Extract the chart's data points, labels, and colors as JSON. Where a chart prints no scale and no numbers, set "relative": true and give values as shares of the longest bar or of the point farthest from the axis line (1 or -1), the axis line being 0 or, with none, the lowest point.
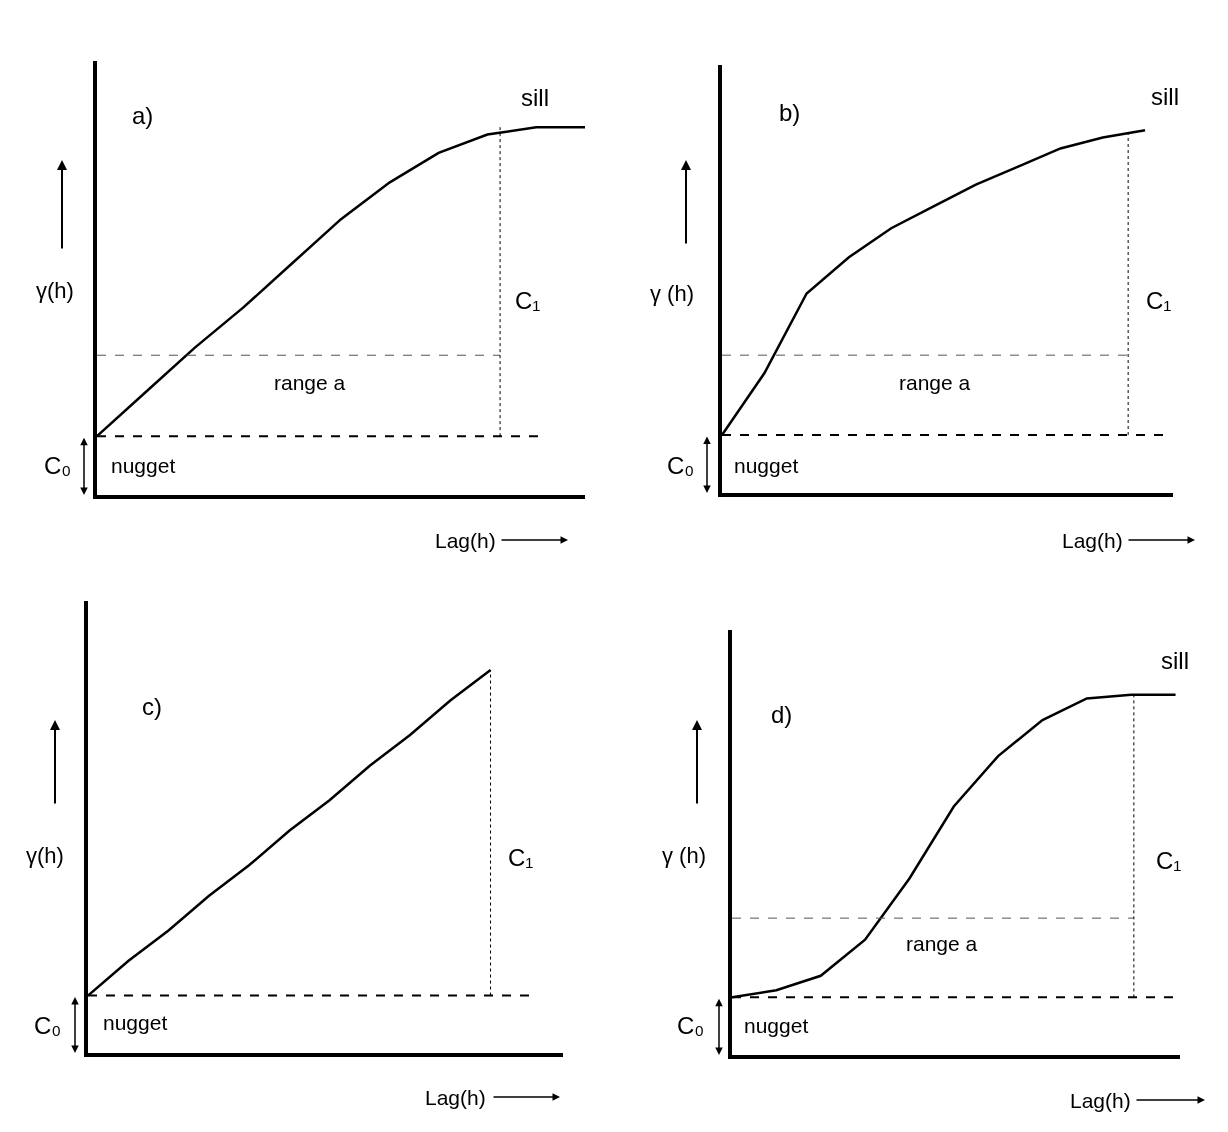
{
  "chart_data": [
    {
      "type": "line",
      "relative": true,
      "xlabel": "Lag(h)",
      "ylabel": "γ(h)",
      "categories": [
        null,
        null,
        null,
        null,
        null,
        null,
        null,
        null,
        null,
        null,
        null
      ],
      "series": [
        {
          "color": "#000000",
          "values": [
            0.16,
            0.28,
            0.4,
            0.51,
            0.63,
            0.75,
            0.85,
            0.93,
            0.98,
            1,
            1
          ]
        }
      ],
      "annotations": [
        "a)",
        "sill",
        "C₁",
        "C₀"
      ],
      "ref_lines": [
        {
          "axis": "y",
          "value": 0.16,
          "label": "nugget",
          "line_style": "dashed",
          "color": "#000000"
        },
        {
          "axis": "y",
          "value": 0.38,
          "label": "range a",
          "line_style": "dashed",
          "color": "#555555"
        }
      ]
    },
    {
      "type": "line",
      "relative": true,
      "xlabel": "Lag(h)",
      "ylabel": "γ (h)",
      "categories": [
        null,
        null,
        null,
        null,
        null,
        null,
        null,
        null,
        null,
        null,
        null
      ],
      "series": [
        {
          "color": "#000000",
          "values": [
            0.16,
            0.33,
            0.55,
            0.65,
            0.73,
            0.79,
            0.85,
            0.9,
            0.95,
            0.98,
            1
          ]
        }
      ],
      "annotations": [
        "b)",
        "sill",
        "C₁",
        "C₀"
      ],
      "ref_lines": [
        {
          "axis": "y",
          "value": 0.16,
          "label": "nugget",
          "line_style": "dashed",
          "color": "#000000"
        },
        {
          "axis": "y",
          "value": 0.38,
          "label": "range a",
          "line_style": "dashed",
          "color": "#555555"
        }
      ]
    },
    {
      "type": "line",
      "relative": true,
      "xlabel": "Lag(h)",
      "ylabel": "γ(h)",
      "categories": [
        null,
        null,
        null,
        null,
        null,
        null,
        null,
        null,
        null,
        null,
        null
      ],
      "series": [
        {
          "color": "#000000",
          "values": [
            0.15,
            0.24,
            0.32,
            0.41,
            0.49,
            0.58,
            0.66,
            0.75,
            0.83,
            0.92,
            1
          ]
        }
      ],
      "annotations": [
        "c)",
        "C₁",
        "C₀"
      ],
      "ref_lines": [
        {
          "axis": "y",
          "value": 0.15,
          "label": "nugget",
          "line_style": "dashed",
          "color": "#000000"
        }
      ]
    },
    {
      "type": "line",
      "relative": true,
      "xlabel": "Lag(h)",
      "ylabel": "γ (h)",
      "categories": [
        null,
        null,
        null,
        null,
        null,
        null,
        null,
        null,
        null,
        null,
        null
      ],
      "series": [
        {
          "color": "#000000",
          "values": [
            0.16,
            0.18,
            0.22,
            0.32,
            0.49,
            0.69,
            0.83,
            0.93,
            0.99,
            1,
            1
          ]
        }
      ],
      "annotations": [
        "d)",
        "sill",
        "C₁",
        "C₀"
      ],
      "ref_lines": [
        {
          "axis": "y",
          "value": 0.16,
          "label": "nugget",
          "line_style": "dashed",
          "color": "#000000"
        },
        {
          "axis": "y",
          "value": 0.38,
          "label": "range a",
          "line_style": "dashed",
          "color": "#555555"
        }
      ]
    }
  ]
}
